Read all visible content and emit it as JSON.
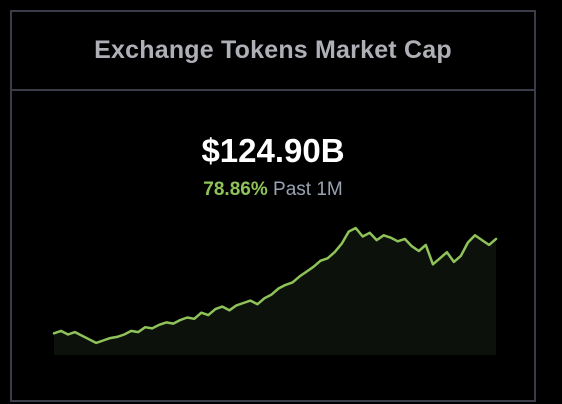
{
  "widget": {
    "title": "Exchange Tokens Market Cap",
    "value": "$124.90B",
    "change_percent": "78.86%",
    "change_period": "Past 1M"
  },
  "colors": {
    "positive": "#8fc35a",
    "line": "#8fc35a",
    "border": "#3a3d47",
    "title_text": "#aeb0b6",
    "background": "#000000"
  },
  "chart_data": {
    "type": "area",
    "y_relative": [
      0.13,
      0.15,
      0.12,
      0.14,
      0.11,
      0.08,
      0.05,
      0.07,
      0.09,
      0.1,
      0.12,
      0.15,
      0.14,
      0.18,
      0.17,
      0.2,
      0.22,
      0.21,
      0.24,
      0.26,
      0.25,
      0.3,
      0.28,
      0.33,
      0.35,
      0.32,
      0.36,
      0.38,
      0.4,
      0.37,
      0.42,
      0.45,
      0.5,
      0.53,
      0.55,
      0.6,
      0.64,
      0.68,
      0.73,
      0.75,
      0.8,
      0.87,
      0.97,
      1.0,
      0.93,
      0.96,
      0.9,
      0.94,
      0.92,
      0.89,
      0.91,
      0.85,
      0.81,
      0.86,
      0.7,
      0.75,
      0.8,
      0.72,
      0.77,
      0.88,
      0.94,
      0.9,
      0.86,
      0.91
    ]
  }
}
